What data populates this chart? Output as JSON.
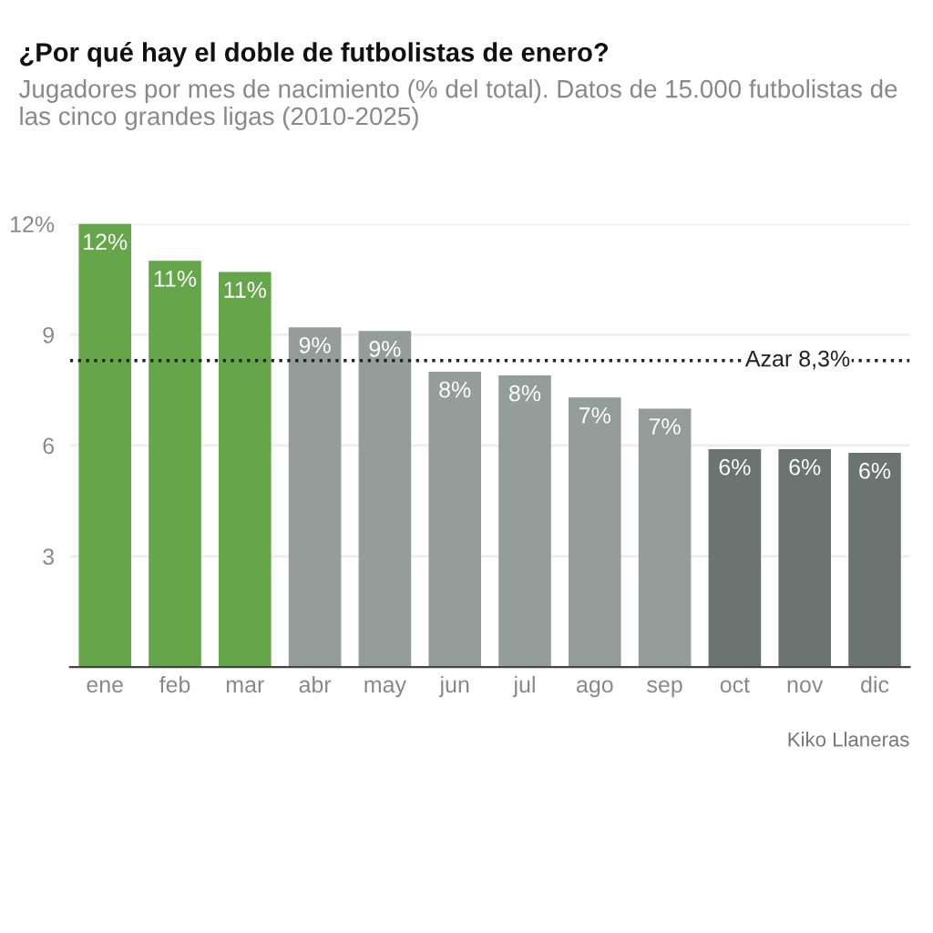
{
  "chart_data": {
    "type": "bar",
    "title": "¿Por qué hay el doble de futbolistas de enero?",
    "subtitle": "Jugadores por mes de nacimiento (% del total). Datos de 15.000 futbolistas de las cinco grandes ligas (2010-2025)",
    "categories": [
      "ene",
      "feb",
      "mar",
      "abr",
      "may",
      "jun",
      "jul",
      "ago",
      "sep",
      "oct",
      "nov",
      "dic"
    ],
    "values": [
      12.0,
      11.0,
      10.7,
      9.2,
      9.1,
      8.0,
      7.9,
      7.3,
      7.0,
      5.9,
      5.9,
      5.8
    ],
    "value_labels": [
      "12%",
      "11%",
      "11%",
      "9%",
      "9%",
      "8%",
      "8%",
      "7%",
      "7%",
      "6%",
      "6%",
      "6%"
    ],
    "colors": [
      "#65a64a",
      "#65a64a",
      "#65a64a",
      "#959d9b",
      "#959d9b",
      "#959d9b",
      "#959d9b",
      "#959d9b",
      "#959d9b",
      "#6b7471",
      "#6b7471",
      "#6b7471"
    ],
    "ylim": [
      0,
      12
    ],
    "yticks": [
      3,
      6,
      9,
      {
        "value": 12,
        "label": "12%"
      }
    ],
    "grid": "y",
    "ref_lines": [
      {
        "axis": "y",
        "value": 8.3,
        "label": "Azar 8,3%",
        "color": "#222222",
        "line_style": "dotted"
      }
    ],
    "annotations": [
      "Kiko Llaneras"
    ]
  }
}
